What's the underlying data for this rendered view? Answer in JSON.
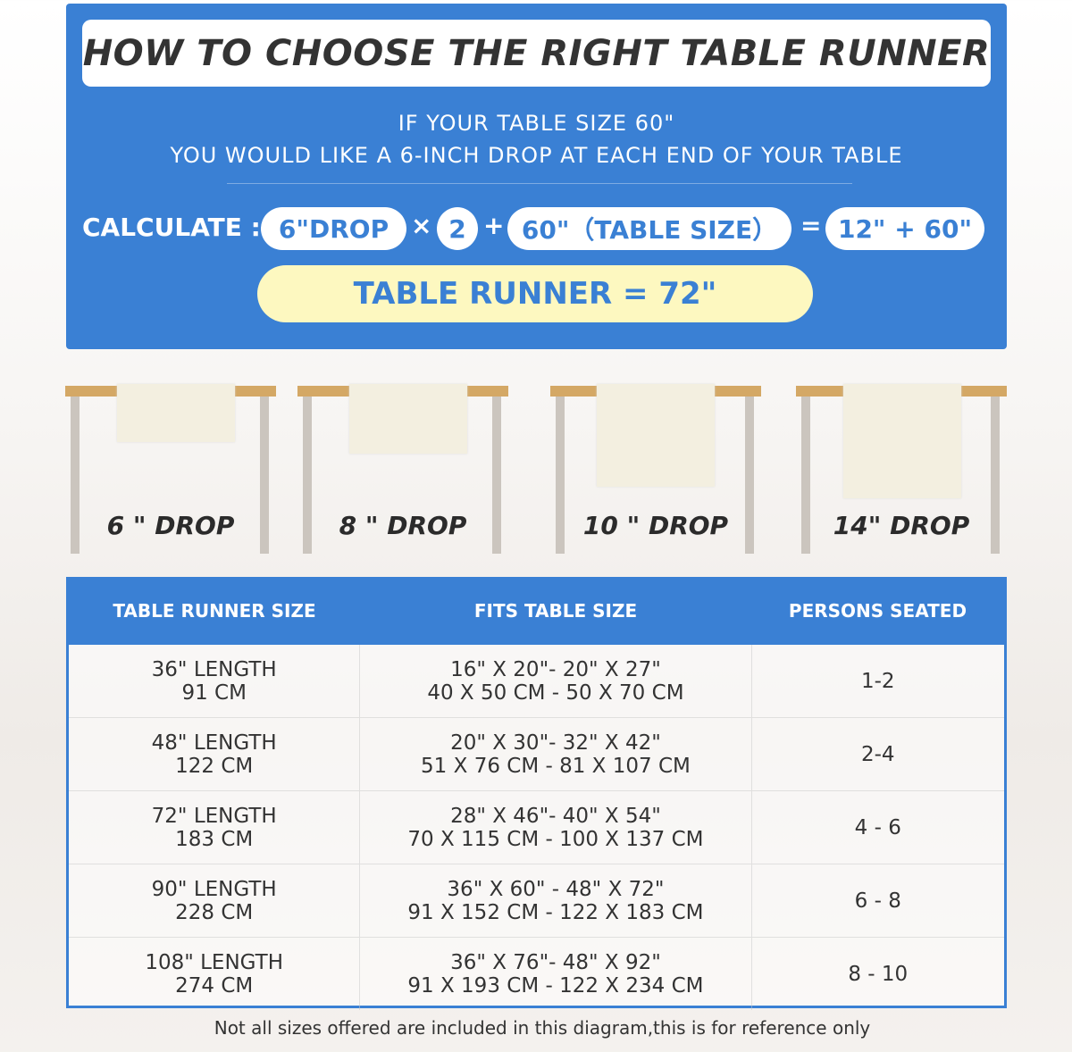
{
  "header": {
    "title": "HOW TO CHOOSE THE RIGHT TABLE RUNNER",
    "line1": "IF YOUR TABLE SIZE 60\"",
    "line2": "YOU WOULD LIKE A 6-INCH DROP AT EACH END OF YOUR TABLE"
  },
  "calc": {
    "label": "CALCULATE :",
    "drop": "6\"DROP",
    "times": "×",
    "two": "2",
    "plus": "+",
    "table": "60\"（TABLE SIZE）",
    "equals": "=",
    "sum": "12\" + 60\"",
    "result": "TABLE RUNNER = 72\""
  },
  "drops": [
    {
      "label": "6 \" DROP"
    },
    {
      "label": "8 \" DROP"
    },
    {
      "label": "10 \" DROP"
    },
    {
      "label": "14\" DROP"
    }
  ],
  "table": {
    "headers": [
      "TABLE RUNNER SIZE",
      "FITS TABLE SIZE",
      "PERSONS SEATED"
    ],
    "rows": [
      {
        "size": "36\" LENGTH",
        "size_cm": "91 CM",
        "fits": "16\" X 20\"- 20\" X 27\"",
        "fits_cm": "40 X 50 CM - 50 X 70 CM",
        "persons": "1-2"
      },
      {
        "size": "48\" LENGTH",
        "size_cm": "122 CM",
        "fits": "20\" X 30\"- 32\" X 42\"",
        "fits_cm": "51 X 76 CM - 81 X 107 CM",
        "persons": "2-4"
      },
      {
        "size": "72\" LENGTH",
        "size_cm": "183 CM",
        "fits": "28\" X 46\"- 40\" X 54\"",
        "fits_cm": "70 X 115 CM - 100 X 137 CM",
        "persons": "4 - 6"
      },
      {
        "size": "90\" LENGTH",
        "size_cm": "228 CM",
        "fits": "36\" X 60\" - 48\" X 72\"",
        "fits_cm": "91 X 152 CM - 122 X 183 CM",
        "persons": "6 - 8"
      },
      {
        "size": "108\" LENGTH",
        "size_cm": "274 CM",
        "fits": "36\" X 76\"- 48\" X 92\"",
        "fits_cm": "91 X 193 CM - 122 X 234 CM",
        "persons": "8 - 10"
      }
    ]
  },
  "footer": "Not all sizes offered are included in this diagram,this is for reference only",
  "colors": {
    "blue": "#3a80d4",
    "yellow": "#fdf8c0",
    "wood": "#d4a865"
  }
}
